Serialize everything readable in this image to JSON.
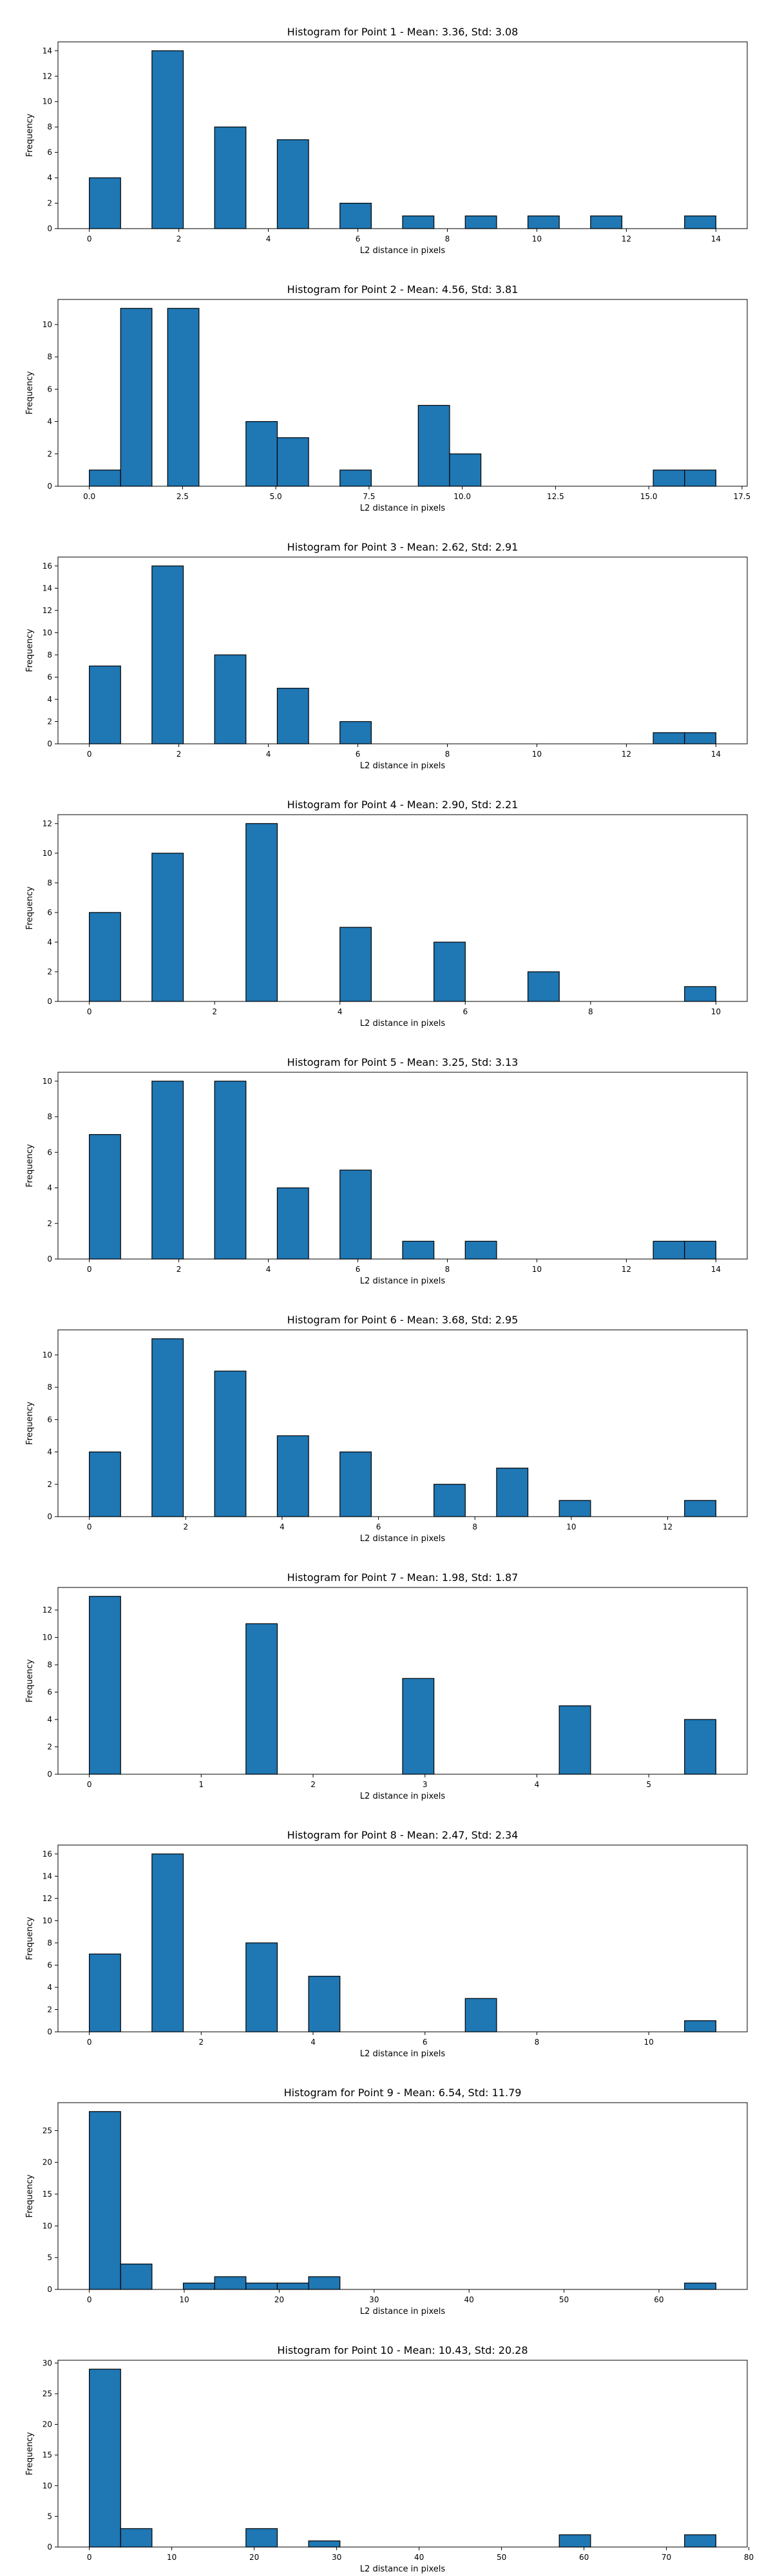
{
  "chart_data": [
    {
      "type": "bar",
      "title": "Histogram for Point 1 - Mean: 3.36, Std: 3.08",
      "xlabel": "L2 distance in pixels",
      "ylabel": "Frequency",
      "xlim": [
        -0.7,
        14.7
      ],
      "ylim": [
        0,
        14.7
      ],
      "xticks": [
        0,
        2,
        4,
        6,
        8,
        10,
        12,
        14
      ],
      "xtick_labels": [
        "0",
        "2",
        "4",
        "6",
        "8",
        "10",
        "12",
        "14"
      ],
      "yticks": [
        0,
        2,
        4,
        6,
        8,
        10,
        12,
        14
      ],
      "ytick_labels": [
        "0",
        "2",
        "4",
        "6",
        "8",
        "10",
        "12",
        "14"
      ],
      "bars": [
        {
          "x0": 0,
          "x1": 0.7,
          "value": 4
        },
        {
          "x0": 1.4,
          "x1": 2.1,
          "value": 14
        },
        {
          "x0": 2.8,
          "x1": 3.5,
          "value": 8
        },
        {
          "x0": 4.2,
          "x1": 4.9,
          "value": 7
        },
        {
          "x0": 5.6,
          "x1": 6.3,
          "value": 2
        },
        {
          "x0": 7.0,
          "x1": 7.7,
          "value": 1
        },
        {
          "x0": 8.4,
          "x1": 9.1,
          "value": 1
        },
        {
          "x0": 9.8,
          "x1": 10.5,
          "value": 1
        },
        {
          "x0": 11.2,
          "x1": 11.9,
          "value": 1
        },
        {
          "x0": 13.3,
          "x1": 14.0,
          "value": 1
        }
      ]
    },
    {
      "type": "bar",
      "title": "Histogram for Point 2 - Mean: 4.56, Std: 3.81",
      "xlabel": "L2 distance in pixels",
      "ylabel": "Frequency",
      "xlim": [
        -0.84,
        17.64
      ],
      "ylim": [
        0,
        11.55
      ],
      "xticks": [
        0,
        2.5,
        5,
        7.5,
        10,
        12.5,
        15,
        17.5
      ],
      "xtick_labels": [
        "0.0",
        "2.5",
        "5.0",
        "7.5",
        "10.0",
        "12.5",
        "15.0",
        "17.5"
      ],
      "yticks": [
        0,
        2,
        4,
        6,
        8,
        10
      ],
      "ytick_labels": [
        "0",
        "2",
        "4",
        "6",
        "8",
        "10"
      ],
      "bars": [
        {
          "x0": 0,
          "x1": 0.84,
          "value": 1
        },
        {
          "x0": 0.84,
          "x1": 1.68,
          "value": 11
        },
        {
          "x0": 2.1,
          "x1": 2.94,
          "value": 11
        },
        {
          "x0": 4.2,
          "x1": 5.04,
          "value": 4
        },
        {
          "x0": 5.04,
          "x1": 5.88,
          "value": 3
        },
        {
          "x0": 6.72,
          "x1": 7.56,
          "value": 1
        },
        {
          "x0": 8.82,
          "x1": 9.66,
          "value": 5
        },
        {
          "x0": 9.66,
          "x1": 10.5,
          "value": 2
        },
        {
          "x0": 15.96,
          "x1": 16.8,
          "value": 1
        },
        {
          "x0": 16.8,
          "x1": 16.8,
          "value": 0
        },
        {
          "x0": 15.12,
          "x1": 15.96,
          "value": 1
        }
      ]
    },
    {
      "type": "bar",
      "title": "Histogram for Point 3 - Mean: 2.62, Std: 2.91",
      "xlabel": "L2 distance in pixels",
      "ylabel": "Frequency",
      "xlim": [
        -0.7,
        14.7
      ],
      "ylim": [
        0,
        16.8
      ],
      "xticks": [
        0,
        2,
        4,
        6,
        8,
        10,
        12,
        14
      ],
      "xtick_labels": [
        "0",
        "2",
        "4",
        "6",
        "8",
        "10",
        "12",
        "14"
      ],
      "yticks": [
        0,
        2,
        4,
        6,
        8,
        10,
        12,
        14,
        16
      ],
      "ytick_labels": [
        "0",
        "2",
        "4",
        "6",
        "8",
        "10",
        "12",
        "14",
        "16"
      ],
      "bars": [
        {
          "x0": 0,
          "x1": 0.7,
          "value": 7
        },
        {
          "x0": 1.4,
          "x1": 2.1,
          "value": 16
        },
        {
          "x0": 2.8,
          "x1": 3.5,
          "value": 8
        },
        {
          "x0": 4.2,
          "x1": 4.9,
          "value": 5
        },
        {
          "x0": 5.6,
          "x1": 6.3,
          "value": 2
        },
        {
          "x0": 12.6,
          "x1": 13.3,
          "value": 1
        },
        {
          "x0": 13.3,
          "x1": 14.0,
          "value": 1
        }
      ]
    },
    {
      "type": "bar",
      "title": "Histogram for Point 4 - Mean: 2.90, Std: 2.21",
      "xlabel": "L2 distance in pixels",
      "ylabel": "Frequency",
      "xlim": [
        -0.5,
        10.5
      ],
      "ylim": [
        0,
        12.6
      ],
      "xticks": [
        0,
        2,
        4,
        6,
        8,
        10
      ],
      "xtick_labels": [
        "0",
        "2",
        "4",
        "6",
        "8",
        "10"
      ],
      "yticks": [
        0,
        2,
        4,
        6,
        8,
        10,
        12
      ],
      "ytick_labels": [
        "0",
        "2",
        "4",
        "6",
        "8",
        "10",
        "12"
      ],
      "bars": [
        {
          "x0": 0,
          "x1": 0.5,
          "value": 6
        },
        {
          "x0": 1.0,
          "x1": 1.5,
          "value": 10
        },
        {
          "x0": 2.5,
          "x1": 3.0,
          "value": 12
        },
        {
          "x0": 4.0,
          "x1": 4.5,
          "value": 5
        },
        {
          "x0": 5.5,
          "x1": 6.0,
          "value": 4
        },
        {
          "x0": 7.0,
          "x1": 7.5,
          "value": 2
        },
        {
          "x0": 9.5,
          "x1": 10.0,
          "value": 1
        }
      ]
    },
    {
      "type": "bar",
      "title": "Histogram for Point 5 - Mean: 3.25, Std: 3.13",
      "xlabel": "L2 distance in pixels",
      "ylabel": "Frequency",
      "xlim": [
        -0.7,
        14.7
      ],
      "ylim": [
        0,
        10.5
      ],
      "xticks": [
        0,
        2,
        4,
        6,
        8,
        10,
        12,
        14
      ],
      "xtick_labels": [
        "0",
        "2",
        "4",
        "6",
        "8",
        "10",
        "12",
        "14"
      ],
      "yticks": [
        0,
        2,
        4,
        6,
        8,
        10
      ],
      "ytick_labels": [
        "0",
        "2",
        "4",
        "6",
        "8",
        "10"
      ],
      "bars": [
        {
          "x0": 0,
          "x1": 0.7,
          "value": 7
        },
        {
          "x0": 1.4,
          "x1": 2.1,
          "value": 10
        },
        {
          "x0": 2.8,
          "x1": 3.5,
          "value": 10
        },
        {
          "x0": 4.2,
          "x1": 4.9,
          "value": 4
        },
        {
          "x0": 5.6,
          "x1": 6.3,
          "value": 5
        },
        {
          "x0": 7.0,
          "x1": 7.7,
          "value": 1
        },
        {
          "x0": 8.4,
          "x1": 9.1,
          "value": 1
        },
        {
          "x0": 12.6,
          "x1": 13.3,
          "value": 1
        },
        {
          "x0": 13.3,
          "x1": 14.0,
          "value": 1
        }
      ]
    },
    {
      "type": "bar",
      "title": "Histogram for Point 6 - Mean: 3.68, Std: 2.95",
      "xlabel": "L2 distance in pixels",
      "ylabel": "Frequency",
      "xlim": [
        -0.65,
        13.65
      ],
      "ylim": [
        0,
        11.55
      ],
      "xticks": [
        0,
        2,
        4,
        6,
        8,
        10,
        12
      ],
      "xtick_labels": [
        "0",
        "2",
        "4",
        "6",
        "8",
        "10",
        "12"
      ],
      "yticks": [
        0,
        2,
        4,
        6,
        8,
        10
      ],
      "ytick_labels": [
        "0",
        "2",
        "4",
        "6",
        "8",
        "10"
      ],
      "bars": [
        {
          "x0": 0,
          "x1": 0.65,
          "value": 4
        },
        {
          "x0": 1.3,
          "x1": 1.95,
          "value": 11
        },
        {
          "x0": 2.6,
          "x1": 3.25,
          "value": 9
        },
        {
          "x0": 3.9,
          "x1": 4.55,
          "value": 5
        },
        {
          "x0": 5.2,
          "x1": 5.85,
          "value": 4
        },
        {
          "x0": 7.15,
          "x1": 7.8,
          "value": 2
        },
        {
          "x0": 8.45,
          "x1": 9.1,
          "value": 3
        },
        {
          "x0": 9.75,
          "x1": 10.4,
          "value": 1
        },
        {
          "x0": 12.35,
          "x1": 13.0,
          "value": 1
        }
      ]
    },
    {
      "type": "bar",
      "title": "Histogram for Point 7 - Mean: 1.98, Std: 1.87",
      "xlabel": "L2 distance in pixels",
      "ylabel": "Frequency",
      "xlim": [
        -0.28,
        5.88
      ],
      "ylim": [
        0,
        13.65
      ],
      "xticks": [
        0,
        1,
        2,
        3,
        4,
        5
      ],
      "xtick_labels": [
        "0",
        "1",
        "2",
        "3",
        "4",
        "5"
      ],
      "yticks": [
        0,
        2,
        4,
        6,
        8,
        10,
        12
      ],
      "ytick_labels": [
        "0",
        "2",
        "4",
        "6",
        "8",
        "10",
        "12"
      ],
      "bars": [
        {
          "x0": 0,
          "x1": 0.28,
          "value": 13
        },
        {
          "x0": 1.4,
          "x1": 1.68,
          "value": 11
        },
        {
          "x0": 2.8,
          "x1": 3.08,
          "value": 7
        },
        {
          "x0": 4.2,
          "x1": 4.48,
          "value": 5
        },
        {
          "x0": 5.32,
          "x1": 5.6,
          "value": 4
        }
      ]
    },
    {
      "type": "bar",
      "title": "Histogram for Point 8 - Mean: 2.47, Std: 2.34",
      "xlabel": "L2 distance in pixels",
      "ylabel": "Frequency",
      "xlim": [
        -0.56,
        11.76
      ],
      "ylim": [
        0,
        16.8
      ],
      "xticks": [
        0,
        2,
        4,
        6,
        8,
        10
      ],
      "xtick_labels": [
        "0",
        "2",
        "4",
        "6",
        "8",
        "10"
      ],
      "yticks": [
        0,
        2,
        4,
        6,
        8,
        10,
        12,
        14,
        16
      ],
      "ytick_labels": [
        "0",
        "2",
        "4",
        "6",
        "8",
        "10",
        "12",
        "14",
        "16"
      ],
      "bars": [
        {
          "x0": 0,
          "x1": 0.56,
          "value": 7
        },
        {
          "x0": 1.12,
          "x1": 1.68,
          "value": 16
        },
        {
          "x0": 2.8,
          "x1": 3.36,
          "value": 8
        },
        {
          "x0": 3.92,
          "x1": 4.48,
          "value": 5
        },
        {
          "x0": 6.72,
          "x1": 7.28,
          "value": 3
        },
        {
          "x0": 10.64,
          "x1": 11.2,
          "value": 1
        }
      ]
    },
    {
      "type": "bar",
      "title": "Histogram for Point 9 - Mean: 6.54, Std: 11.79",
      "xlabel": "L2 distance in pixels",
      "ylabel": "Frequency",
      "xlim": [
        -3.3,
        69.3
      ],
      "ylim": [
        0,
        29.4
      ],
      "xticks": [
        0,
        10,
        20,
        30,
        40,
        50,
        60
      ],
      "xtick_labels": [
        "0",
        "10",
        "20",
        "30",
        "40",
        "50",
        "60"
      ],
      "yticks": [
        0,
        5,
        10,
        15,
        20,
        25
      ],
      "ytick_labels": [
        "0",
        "5",
        "10",
        "15",
        "20",
        "25"
      ],
      "bars": [
        {
          "x0": 0,
          "x1": 3.3,
          "value": 28
        },
        {
          "x0": 3.3,
          "x1": 6.6,
          "value": 4
        },
        {
          "x0": 9.9,
          "x1": 13.2,
          "value": 1
        },
        {
          "x0": 13.2,
          "x1": 16.5,
          "value": 2
        },
        {
          "x0": 16.5,
          "x1": 19.8,
          "value": 1
        },
        {
          "x0": 19.8,
          "x1": 23.1,
          "value": 1
        },
        {
          "x0": 23.1,
          "x1": 26.4,
          "value": 2
        },
        {
          "x0": 62.7,
          "x1": 66.0,
          "value": 1
        }
      ]
    },
    {
      "type": "bar",
      "title": "Histogram for Point 10 - Mean: 10.43, Std: 20.28",
      "xlabel": "L2 distance in pixels",
      "ylabel": "Frequency",
      "xlim": [
        -3.8,
        79.8
      ],
      "ylim": [
        0,
        30.45
      ],
      "xticks": [
        0,
        10,
        20,
        30,
        40,
        50,
        60,
        70,
        80
      ],
      "xtick_labels": [
        "0",
        "10",
        "20",
        "30",
        "40",
        "50",
        "60",
        "70",
        "80"
      ],
      "yticks": [
        0,
        5,
        10,
        15,
        20,
        25,
        30
      ],
      "ytick_labels": [
        "0",
        "5",
        "10",
        "15",
        "20",
        "25",
        "30"
      ],
      "bars": [
        {
          "x0": 0,
          "x1": 3.8,
          "value": 29
        },
        {
          "x0": 3.8,
          "x1": 7.6,
          "value": 3
        },
        {
          "x0": 19.0,
          "x1": 22.8,
          "value": 3
        },
        {
          "x0": 26.6,
          "x1": 30.4,
          "value": 1
        },
        {
          "x0": 57.0,
          "x1": 60.8,
          "value": 2
        },
        {
          "x0": 72.2,
          "x1": 76.0,
          "value": 2
        }
      ]
    }
  ]
}
